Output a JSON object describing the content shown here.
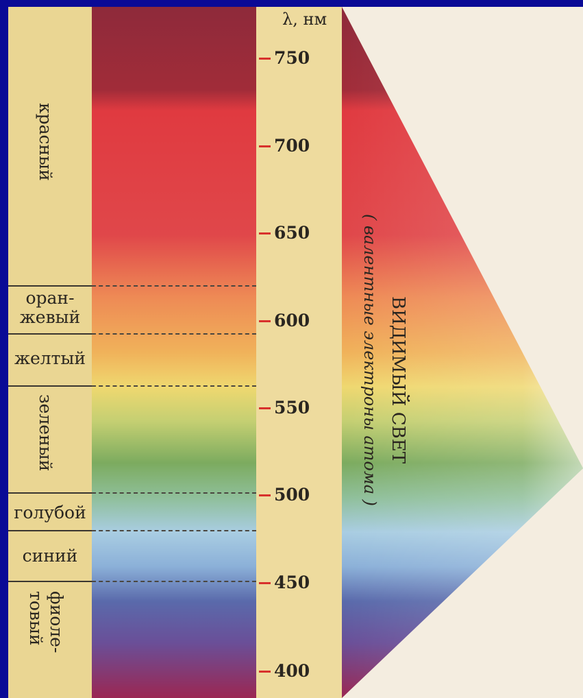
{
  "axis": {
    "unit_label": "λ, нм"
  },
  "ticks": [
    {
      "value": "750"
    },
    {
      "value": "700"
    },
    {
      "value": "650"
    },
    {
      "value": "600"
    },
    {
      "value": "550"
    },
    {
      "value": "500"
    },
    {
      "value": "450"
    },
    {
      "value": "400"
    }
  ],
  "bands": {
    "red": "красный",
    "orange_1": "оран-",
    "orange_2": "жевый",
    "yellow": "желтый",
    "green": "зеленый",
    "light_blue": "голубой",
    "blue": "синий",
    "violet_1": "фиоле-",
    "violet_2": "товый"
  },
  "title": "ВИДИМЫЙ СВЕТ",
  "subtitle": "( валентные электроны атома )",
  "colors": {
    "frame": "#0a0a96",
    "paper": "#f2e8c6",
    "label_column": "#ead693",
    "tick_mark": "#d8312c"
  }
}
